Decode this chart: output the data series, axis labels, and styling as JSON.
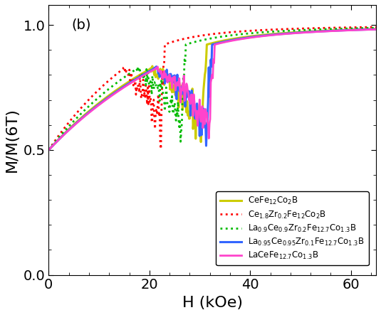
{
  "title": "(b)",
  "xlabel": "H (kOe)",
  "ylabel": "M/M(6T)",
  "xlim": [
    0,
    65
  ],
  "ylim": [
    0.0,
    1.08
  ],
  "yticks": [
    0.0,
    0.5,
    1.0
  ],
  "xticks": [
    0,
    20,
    40,
    60
  ],
  "colors": [
    "#cccc00",
    "#ff0000",
    "#00bb00",
    "#3366ff",
    "#ff44cc"
  ],
  "linestyles": [
    "-",
    ":",
    ":",
    "-",
    "-"
  ],
  "linewidths": [
    2.2,
    2.0,
    2.0,
    2.2,
    2.0
  ],
  "Ha_values": [
    30.0,
    22.0,
    26.0,
    31.0,
    31.5
  ],
  "legend_labels": [
    "CeFe$_{12}$Co$_2$B",
    "Ce$_{1.8}$Zr$_{0.2}$Fe$_{12}$Co$_2$B",
    "La$_{0.9}$Ce$_{0.9}$Zr$_{0.2}$Fe$_{12.7}$Co$_{1.3}$B",
    "La$_{0.95}$Ce$_{0.95}$Zr$_{0.1}$Fe$_{12.7}$Co$_{1.3}$B",
    "LaCeFe$_{12.7}$Co$_{1.3}$B"
  ],
  "background_color": "#ffffff",
  "tick_fontsize": 14,
  "label_fontsize": 16,
  "title_fontsize": 14
}
